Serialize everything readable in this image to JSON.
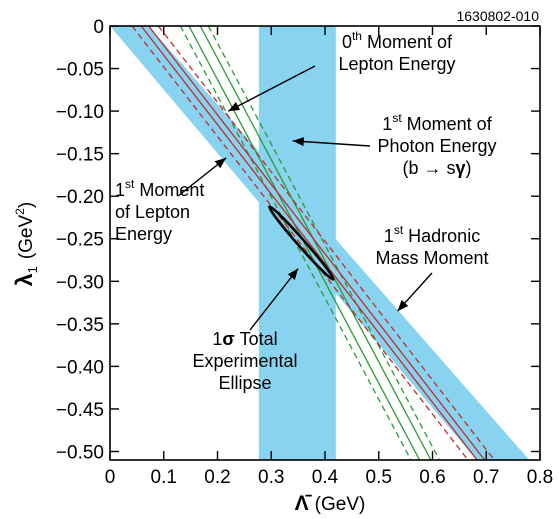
{
  "figure_id": "1630802-010",
  "chart_data": {
    "type": "line",
    "xlabel": {
      "symbol": "Λ̄",
      "unit": "(GeV)"
    },
    "ylabel": {
      "symbol": "λ",
      "subscript": "1",
      "unit": "(GeV",
      "unit_sup": "2",
      "unit_close": ")"
    },
    "xlim": [
      0,
      0.8
    ],
    "ylim": [
      -0.51,
      0
    ],
    "x_ticks": [
      "0",
      "0.1",
      "0.2",
      "0.3",
      "0.4",
      "0.5",
      "0.6",
      "0.7",
      "0.8"
    ],
    "y_ticks": [
      "0",
      "−0.05",
      "−0.10",
      "−0.15",
      "−0.20",
      "−0.25",
      "−0.30",
      "−0.35",
      "−0.40",
      "−0.45",
      "−0.50"
    ],
    "grid": false,
    "bands": [
      {
        "id": "first_lepton_energy_and_hadronic_mass",
        "color": "#87d3f0",
        "polygon": [
          [
            0.0,
            0.0
          ],
          [
            0.072,
            0.0
          ],
          [
            0.78,
            -0.51
          ],
          [
            0.682,
            -0.51
          ]
        ]
      },
      {
        "id": "first_photon_energy",
        "color": "#87d3f0",
        "polygon": [
          [
            0.277,
            0.0
          ],
          [
            0.42,
            0.0
          ],
          [
            0.42,
            -0.51
          ],
          [
            0.277,
            -0.51
          ]
        ]
      }
    ],
    "series": [
      {
        "id": "0th_lepton_central_1",
        "color": "#2a9b33",
        "dash": "solid",
        "points": [
          [
            0.147,
            0.0
          ],
          [
            0.576,
            -0.51
          ]
        ]
      },
      {
        "id": "0th_lepton_central_2",
        "color": "#2a9b33",
        "dash": "solid",
        "points": [
          [
            0.168,
            0.0
          ],
          [
            0.597,
            -0.51
          ]
        ]
      },
      {
        "id": "0th_lepton_edge_1",
        "color": "#2a9b33",
        "dash": "dashed",
        "points": [
          [
            0.131,
            0.0
          ],
          [
            0.56,
            -0.51
          ]
        ]
      },
      {
        "id": "0th_lepton_edge_2",
        "color": "#2a9b33",
        "dash": "dashed",
        "points": [
          [
            0.183,
            0.0
          ],
          [
            0.613,
            -0.51
          ]
        ]
      },
      {
        "id": "1st_lepton_central_1",
        "color": "#c42a2a",
        "dash": "solid",
        "points": [
          [
            0.058,
            0.0
          ],
          [
            0.683,
            -0.51
          ]
        ]
      },
      {
        "id": "1st_lepton_central_2",
        "color": "#c42a2a",
        "dash": "solid",
        "points": [
          [
            0.072,
            0.0
          ],
          [
            0.697,
            -0.51
          ]
        ]
      },
      {
        "id": "1st_lepton_edge_1",
        "color": "#c42a2a",
        "dash": "dashed",
        "points": [
          [
            0.041,
            0.0
          ],
          [
            0.666,
            -0.51
          ]
        ]
      },
      {
        "id": "1st_lepton_edge_2",
        "color": "#c42a2a",
        "dash": "dashed",
        "points": [
          [
            0.09,
            0.0
          ],
          [
            0.715,
            -0.51
          ]
        ]
      }
    ],
    "ellipse": {
      "center": [
        0.356,
        -0.255
      ],
      "semi_major": 0.09,
      "semi_minor": 0.0065,
      "color": "#000000"
    },
    "annotations": [
      {
        "id": "zeroth_lepton",
        "lines": [
          [
            "0",
            "th",
            " Moment of"
          ],
          [
            "Lepton Energy"
          ]
        ],
        "arrow_to": [
          0.22,
          -0.1
        ]
      },
      {
        "id": "first_photon",
        "lines": [
          [
            "1",
            "st",
            " Moment of"
          ],
          [
            "Photon Energy"
          ],
          [
            "(b ",
            "→",
            " s",
            "γ",
            ")"
          ]
        ],
        "arrow_to": [
          0.34,
          -0.135
        ]
      },
      {
        "id": "first_lepton",
        "lines": [
          [
            "1",
            "st",
            " Moment"
          ],
          [
            "of Lepton"
          ],
          [
            "Energy"
          ]
        ],
        "arrow_to": [
          0.216,
          -0.155
        ]
      },
      {
        "id": "first_hadronic",
        "lines": [
          [
            "1",
            "st",
            " Hadronic"
          ],
          [
            "Mass Moment"
          ]
        ],
        "arrow_to": [
          0.535,
          -0.335
        ]
      },
      {
        "id": "ellipse_label",
        "lines": [
          [
            "1",
            "σ",
            " Total"
          ],
          [
            "Experimental"
          ],
          [
            "Ellipse"
          ]
        ],
        "arrow_to": [
          0.35,
          -0.285
        ]
      }
    ]
  }
}
